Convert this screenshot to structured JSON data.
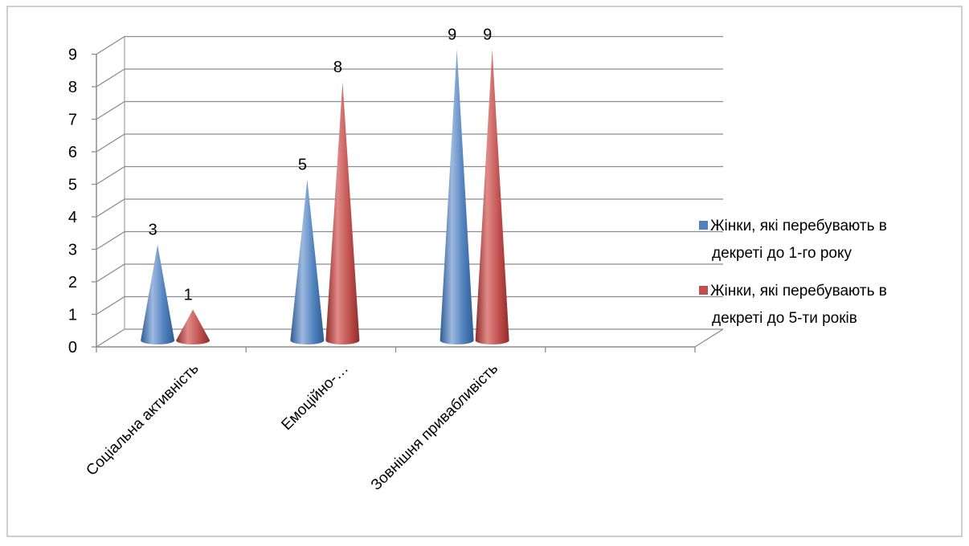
{
  "chart_data": {
    "type": "bar",
    "style": "3d-cone",
    "title": "",
    "xlabel": "",
    "ylabel": "",
    "ylim": [
      0,
      9
    ],
    "yticks": [
      0,
      1,
      2,
      3,
      4,
      5,
      6,
      7,
      8,
      9
    ],
    "categories": [
      "Соціальна активність",
      "Емоційно-…",
      "Зовнішня привабливість"
    ],
    "series": [
      {
        "name": "Жінки, які перебувають в декреті до 1-го року",
        "legend_lines": [
          "Жінки, які перебувають в",
          "декреті до 1-го року"
        ],
        "color": "#4F81BD",
        "values": [
          3,
          5,
          9
        ]
      },
      {
        "name": "Жінки, які перебувають в декреті до 5-ти років",
        "legend_lines": [
          "Жінки, які перебувають в",
          "декреті до 5-ти років"
        ],
        "color": "#C0504D",
        "values": [
          1,
          8,
          9
        ]
      }
    ],
    "grid": true,
    "legend_position": "right"
  }
}
